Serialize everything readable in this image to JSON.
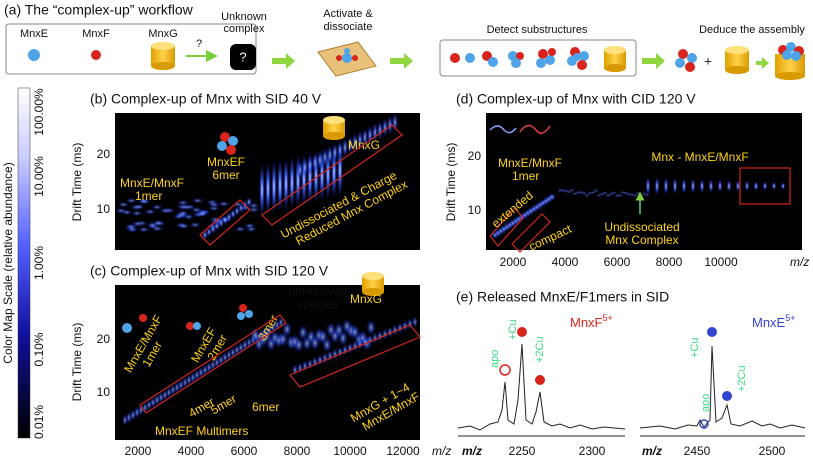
{
  "panel_a": {
    "title": "(a) The “complex-up” workflow",
    "mnxe": "MnxE",
    "mnxf": "MnxF",
    "mnxg": "MnxG",
    "question": "?",
    "unknown": [
      "Unknown",
      "complex"
    ],
    "unknown_mark": "?",
    "activate": [
      "Activate &",
      "dissociate"
    ],
    "detect": "Detect substructures",
    "deduce": "Deduce the assembly",
    "plus": "+"
  },
  "colorbar": {
    "label": "Color Map Scale (relative abundance)",
    "ticks": [
      "100.00%",
      "10.00%",
      "1.00%",
      "0.10%",
      "0.01%"
    ]
  },
  "panel_b": {
    "title": "(b) Complex-up of Mnx with SID 40 V",
    "ylabel": "Drift Time (ms)",
    "yticks": [
      "20",
      "10"
    ],
    "labels": {
      "mono": [
        "MnxE/MnxF",
        "1mer"
      ],
      "hexa": [
        "MnxEF",
        "6mer"
      ],
      "mnxg": "MnxG",
      "undiss": [
        "Undissociated & Charge",
        "Reduced Mnx Complex"
      ]
    }
  },
  "panel_c": {
    "title": "(c) Complex-up of Mnx with SID 120 V",
    "ylabel": "Drift Time (ms)",
    "yticks": [
      "20",
      "10"
    ],
    "xticks": [
      "2000",
      "4000",
      "6000",
      "8000",
      "10000",
      "12000"
    ],
    "xlabel": "m/z",
    "labels": {
      "mono": [
        "MnxE/MnxF",
        "1mer"
      ],
      "di": [
        "MnxEF",
        "2mer"
      ],
      "tri": "3mer",
      "tetra": "4mer",
      "penta": "5mer",
      "hexa": "6mer",
      "unres": [
        "unresolved",
        "species"
      ],
      "mnxg": "MnxG",
      "mnxg_plus": [
        "MnxG + 1~4",
        "MnxE/MnxF"
      ],
      "multi": "MnxEF Multimers"
    }
  },
  "panel_d": {
    "title": "(d) Complex-up of Mnx with CID 120 V",
    "ylabel": "Drift Time (ms)",
    "yticks": [
      "20",
      "10"
    ],
    "xticks": [
      "2000",
      "4000",
      "6000",
      "8000",
      "10000"
    ],
    "xlabel": "m/z",
    "labels": {
      "mono": [
        "MnxE/MnxF",
        "1mer"
      ],
      "extended": "extended",
      "compact": "compact",
      "loss": "Mnx - MnxE/MnxF",
      "undiss": [
        "Undissociated",
        "Mnx Complex"
      ]
    }
  },
  "panel_e": {
    "title": "(e) Released MnxE/F1mers in SID",
    "left": {
      "xticks": [
        "2250",
        "2300"
      ],
      "xlabel": "m/z",
      "species": "MnxF",
      "charge": "5+",
      "apo": "apo",
      "cu": "+Cu",
      "cu2": "+2Cu"
    },
    "right": {
      "xticks": [
        "2450",
        "2500"
      ],
      "xlabel": "m/z",
      "species": "MnxE",
      "charge": "5+",
      "apo": "apo",
      "cu": "+Cu",
      "cu2": "+2Cu"
    }
  }
}
